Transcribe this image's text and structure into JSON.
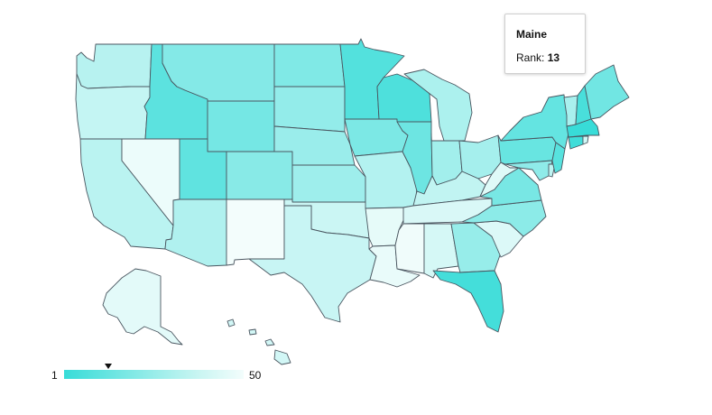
{
  "tooltip": {
    "title": "Maine",
    "rank_label": "Rank:",
    "rank_value": "13"
  },
  "legend": {
    "min_label": "1",
    "max_label": "50",
    "marker_value": 13,
    "color_low_rank": "#38dcd8",
    "color_high_rank": "#f3fdfc"
  },
  "states": [
    {
      "name": "Washington",
      "rank": 32
    },
    {
      "name": "Oregon",
      "rank": 36
    },
    {
      "name": "California",
      "rank": 33
    },
    {
      "name": "Nevada",
      "rank": 48
    },
    {
      "name": "Idaho",
      "rank": 8
    },
    {
      "name": "Montana",
      "rank": 18
    },
    {
      "name": "Wyoming",
      "rank": 14
    },
    {
      "name": "Utah",
      "rank": 9
    },
    {
      "name": "Arizona",
      "rank": 30
    },
    {
      "name": "Colorado",
      "rank": 19
    },
    {
      "name": "New Mexico",
      "rank": 50
    },
    {
      "name": "North Dakota",
      "rank": 17
    },
    {
      "name": "South Dakota",
      "rank": 22
    },
    {
      "name": "Nebraska",
      "rank": 24
    },
    {
      "name": "Kansas",
      "rank": 25
    },
    {
      "name": "Oklahoma",
      "rank": 38
    },
    {
      "name": "Texas",
      "rank": 37
    },
    {
      "name": "Minnesota",
      "rank": 6
    },
    {
      "name": "Iowa",
      "rank": 16
    },
    {
      "name": "Missouri",
      "rank": 31
    },
    {
      "name": "Arkansas",
      "rank": 46
    },
    {
      "name": "Louisiana",
      "rank": 47
    },
    {
      "name": "Wisconsin",
      "rank": 5
    },
    {
      "name": "Illinois",
      "rank": 12
    },
    {
      "name": "Michigan",
      "rank": 29
    },
    {
      "name": "Indiana",
      "rank": 26
    },
    {
      "name": "Ohio",
      "rank": 27
    },
    {
      "name": "Kentucky",
      "rank": 35
    },
    {
      "name": "Tennessee",
      "rank": 42
    },
    {
      "name": "Mississippi",
      "rank": 49
    },
    {
      "name": "Alabama",
      "rank": 41
    },
    {
      "name": "Georgia",
      "rank": 23
    },
    {
      "name": "Florida",
      "rank": 3
    },
    {
      "name": "South Carolina",
      "rank": 43
    },
    {
      "name": "North Carolina",
      "rank": 20
    },
    {
      "name": "Virginia",
      "rank": 15
    },
    {
      "name": "West Virginia",
      "rank": 44
    },
    {
      "name": "Pennsylvania",
      "rank": 11
    },
    {
      "name": "New York",
      "rank": 10
    },
    {
      "name": "Maryland",
      "rank": 21
    },
    {
      "name": "Delaware",
      "rank": 34
    },
    {
      "name": "New Jersey",
      "rank": 7
    },
    {
      "name": "Vermont",
      "rank": 28
    },
    {
      "name": "New Hampshire",
      "rank": 4
    },
    {
      "name": "Maine",
      "rank": 13
    },
    {
      "name": "Massachusetts",
      "rank": 1
    },
    {
      "name": "Connecticut",
      "rank": 2
    },
    {
      "name": "Rhode Island",
      "rank": 39
    },
    {
      "name": "Alaska",
      "rank": 45
    },
    {
      "name": "Hawaii",
      "rank": 40
    }
  ]
}
